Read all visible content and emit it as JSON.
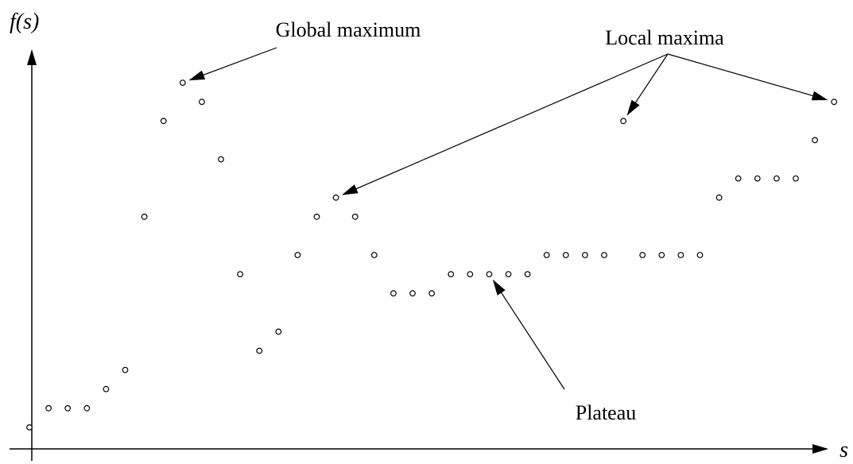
{
  "chart_data": {
    "type": "scatter",
    "title": "",
    "xlabel": "s",
    "ylabel": "f(s)",
    "xlim": [
      0,
      42
    ],
    "ylim": [
      0,
      20
    ],
    "grid": false,
    "legend": "none",
    "marker_color": "#000000",
    "series": [
      {
        "x": [
          0,
          1,
          2,
          3,
          4,
          5,
          6,
          7,
          8,
          9,
          10,
          11,
          12,
          13,
          14,
          15,
          16,
          17,
          18,
          19,
          20,
          21,
          22,
          23,
          24,
          25,
          26,
          27,
          28,
          29,
          30,
          31,
          32,
          33,
          34,
          35,
          36,
          37,
          38,
          39,
          40,
          41,
          42
        ],
        "y": [
          1,
          2,
          2,
          2,
          3,
          4,
          12,
          17,
          19,
          18,
          15,
          9,
          5,
          6,
          10,
          12,
          13,
          12,
          10,
          8,
          8,
          8,
          9,
          9,
          9,
          9,
          9,
          10,
          10,
          10,
          10,
          null,
          10,
          10,
          10,
          10,
          13,
          14,
          14,
          14,
          14,
          16,
          18
        ]
      },
      {
        "x": [
          31
        ],
        "y": [
          17
        ]
      }
    ],
    "annotations": [
      {
        "text": "Global maximum",
        "target_points": [
          [
            8,
            19
          ]
        ]
      },
      {
        "text": "Local maxima",
        "target_points": [
          [
            16,
            13
          ],
          [
            31,
            17
          ],
          [
            42,
            18
          ]
        ]
      },
      {
        "text": "Plateau",
        "target_points": [
          [
            24,
            9
          ]
        ]
      }
    ]
  }
}
